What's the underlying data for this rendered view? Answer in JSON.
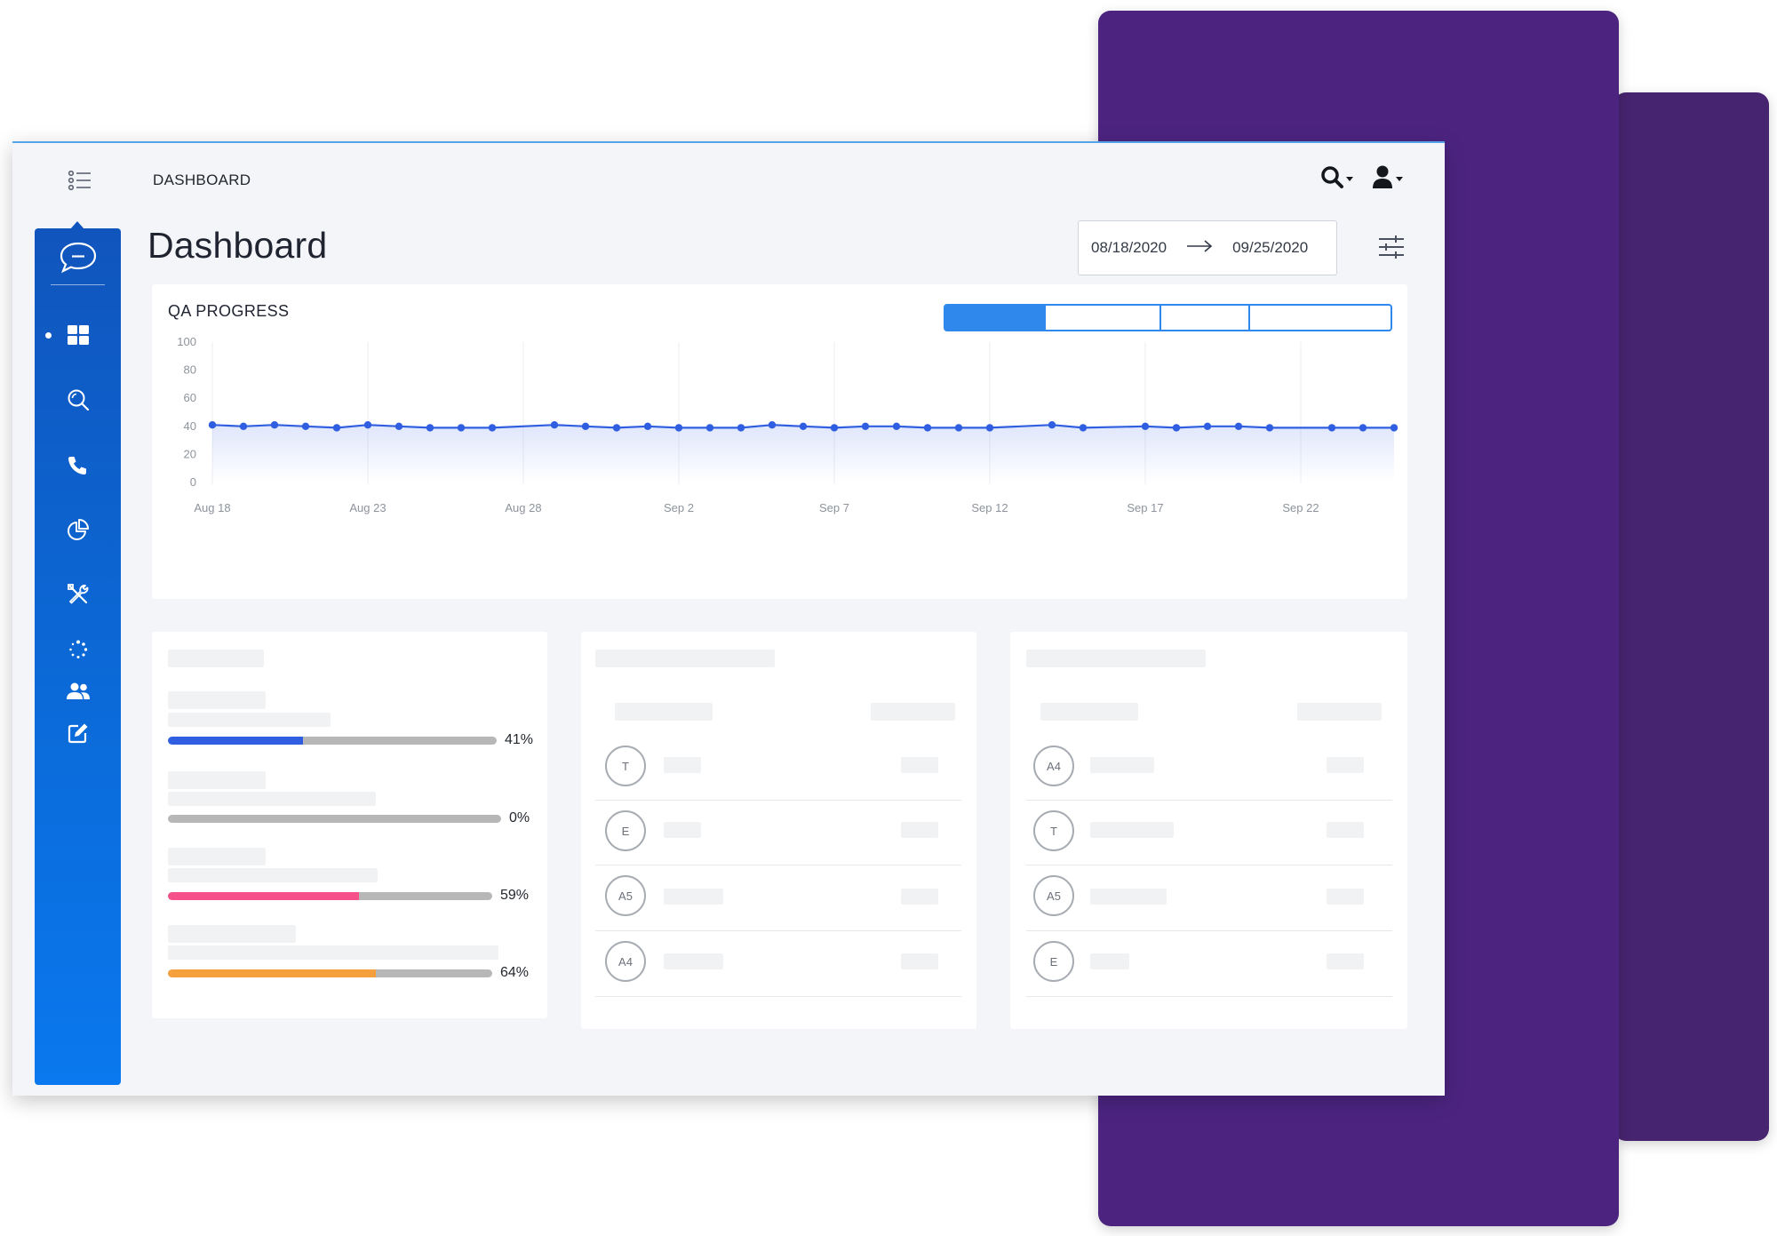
{
  "header": {
    "breadcrumb": "DASHBOARD"
  },
  "sidebar": {
    "items": [
      {
        "icon": "grid-icon",
        "active": true
      },
      {
        "icon": "search-icon"
      },
      {
        "icon": "phone-icon"
      },
      {
        "icon": "pie-chart-icon"
      },
      {
        "icon": "tools-icon"
      },
      {
        "icon": "spinner-icon"
      },
      {
        "icon": "users-icon"
      },
      {
        "icon": "edit-icon"
      }
    ]
  },
  "page": {
    "title": "Dashboard",
    "date_start": "08/18/2020",
    "date_end": "09/25/2020"
  },
  "qa_progress": {
    "title": "QA PROGRESS",
    "segments": 4,
    "active_segment": 0
  },
  "chart_data": {
    "type": "line",
    "title": "QA PROGRESS",
    "xlabel": "",
    "ylabel": "",
    "ylim": [
      0,
      100
    ],
    "yticks": [
      0,
      20,
      40,
      60,
      80,
      100
    ],
    "xtick_labels": [
      "Aug 18",
      "Aug 23",
      "Aug 28",
      "Sep 2",
      "Sep 7",
      "Sep 12",
      "Sep 17",
      "Sep 22"
    ],
    "x_start": "Aug 18",
    "x_end": "Sep 25",
    "series": [
      {
        "color": "#2f5fe0",
        "points": [
          {
            "x": "Aug 18",
            "y": 41
          },
          {
            "x": "Aug 19",
            "y": 40
          },
          {
            "x": "Aug 20",
            "y": 41
          },
          {
            "x": "Aug 21",
            "y": 40
          },
          {
            "x": "Aug 22",
            "y": 39
          },
          {
            "x": "Aug 23",
            "y": 41
          },
          {
            "x": "Aug 24",
            "y": 40
          },
          {
            "x": "Aug 25",
            "y": 39
          },
          {
            "x": "Aug 26",
            "y": 39
          },
          {
            "x": "Aug 27",
            "y": 39
          },
          {
            "x": "Aug 29",
            "y": 41
          },
          {
            "x": "Aug 30",
            "y": 40
          },
          {
            "x": "Aug 31",
            "y": 39
          },
          {
            "x": "Sep 1",
            "y": 40
          },
          {
            "x": "Sep 2",
            "y": 39
          },
          {
            "x": "Sep 3",
            "y": 39
          },
          {
            "x": "Sep 4",
            "y": 39
          },
          {
            "x": "Sep 5",
            "y": 41
          },
          {
            "x": "Sep 6",
            "y": 40
          },
          {
            "x": "Sep 7",
            "y": 39
          },
          {
            "x": "Sep 8",
            "y": 40
          },
          {
            "x": "Sep 9",
            "y": 40
          },
          {
            "x": "Sep 10",
            "y": 39
          },
          {
            "x": "Sep 11",
            "y": 39
          },
          {
            "x": "Sep 12",
            "y": 39
          },
          {
            "x": "Sep 14",
            "y": 41
          },
          {
            "x": "Sep 15",
            "y": 39
          },
          {
            "x": "Sep 17",
            "y": 40
          },
          {
            "x": "Sep 18",
            "y": 39
          },
          {
            "x": "Sep 19",
            "y": 40
          },
          {
            "x": "Sep 20",
            "y": 40
          },
          {
            "x": "Sep 21",
            "y": 39
          },
          {
            "x": "Sep 23",
            "y": 39
          },
          {
            "x": "Sep 24",
            "y": 39
          },
          {
            "x": "Sep 25",
            "y": 39
          }
        ]
      }
    ],
    "grid": true
  },
  "progress_bars": [
    {
      "label": "41%",
      "value": 41,
      "color": "#2f5fe0"
    },
    {
      "label": "0%",
      "value": 0,
      "color": "#b7b7b7"
    },
    {
      "label": "59%",
      "value": 59,
      "color": "#f5508a"
    },
    {
      "label": "64%",
      "value": 64,
      "color": "#f5a03c"
    }
  ],
  "list_middle": [
    "T",
    "E",
    "A5",
    "A4"
  ],
  "list_right": [
    "A4",
    "T",
    "A5",
    "E"
  ],
  "colors": {
    "sidebar_top": "#1055bd",
    "sidebar_bottom": "#0a78ee",
    "accent": "#2f88ec",
    "purple": "#4c2480"
  }
}
